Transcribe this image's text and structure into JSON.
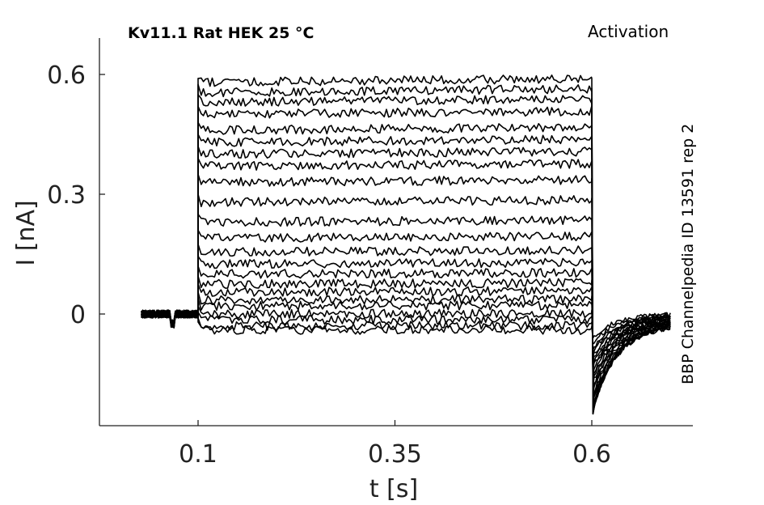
{
  "figure": {
    "title": "Kv11.1  Rat  HEK  25 °C",
    "corner_label": "Activation",
    "side_label": "BBP Channelpedia ID 13591 rep 2"
  },
  "chart_data": {
    "type": "line",
    "title": "Kv11.1  Rat  HEK  25 °C",
    "xlabel": "t [s]",
    "ylabel": "I [nA]",
    "xlim": [
      0.0,
      0.75
    ],
    "ylim": [
      -0.28,
      0.69
    ],
    "xticks": [
      0.1,
      0.35,
      0.6
    ],
    "xtick_labels": [
      "0.1",
      "0.35",
      "0.6"
    ],
    "yticks": [
      0,
      0.3,
      0.6
    ],
    "ytick_labels": [
      "0",
      "0.3",
      "0.6"
    ],
    "grid": false,
    "legend": "none",
    "protocol": {
      "baseline_start": 0.028,
      "step_on": 0.1,
      "step_off": 0.6,
      "end": 0.7
    },
    "step_levels": [
      -0.04,
      -0.03,
      -0.015,
      0.0,
      0.02,
      0.035,
      0.055,
      0.075,
      0.1,
      0.125,
      0.155,
      0.19,
      0.23,
      0.28,
      0.33,
      0.37,
      0.4,
      0.43,
      0.46,
      0.5,
      0.53,
      0.555,
      0.58
    ],
    "tail_minima": [
      -0.06,
      -0.075,
      -0.09,
      -0.1,
      -0.11,
      -0.12,
      -0.13,
      -0.14,
      -0.15,
      -0.16,
      -0.17,
      -0.18,
      -0.19,
      -0.2,
      -0.21,
      -0.22,
      -0.23,
      -0.24,
      -0.25
    ],
    "peak_at_step_on": 0.59
  }
}
